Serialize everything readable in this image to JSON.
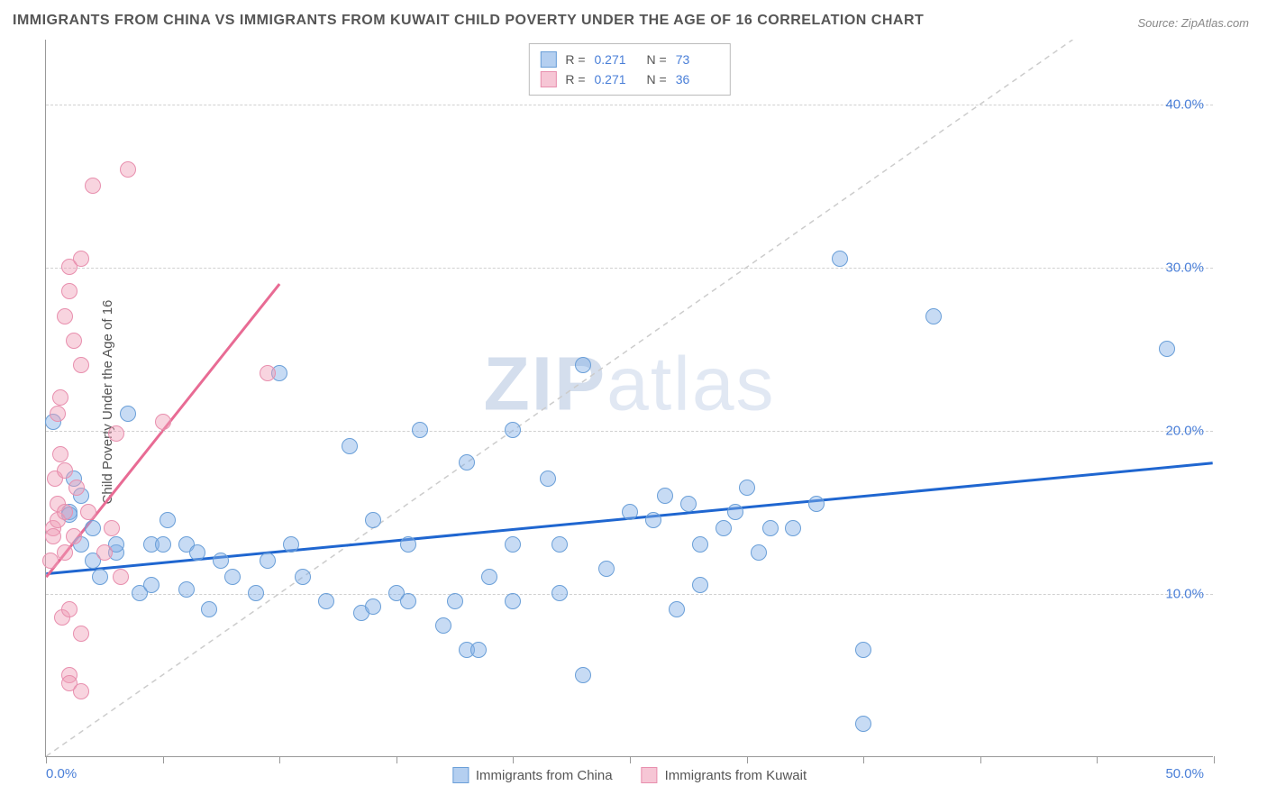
{
  "title": "IMMIGRANTS FROM CHINA VS IMMIGRANTS FROM KUWAIT CHILD POVERTY UNDER THE AGE OF 16 CORRELATION CHART",
  "source": "Source: ZipAtlas.com",
  "ylabel": "Child Poverty Under the Age of 16",
  "watermark_bold": "ZIP",
  "watermark_light": "atlas",
  "chart": {
    "type": "scatter",
    "background": "#ffffff",
    "grid_color": "#d0d0d0",
    "axis_color": "#999999",
    "blue_fill": "rgba(130,175,230,0.45)",
    "blue_stroke": "#6a9fd8",
    "pink_fill": "rgba(240,160,185,0.45)",
    "pink_stroke": "#e88fae",
    "trend_blue": "#1f66d0",
    "trend_pink": "#e86b94",
    "identity_line": "#cccccc",
    "marker_radius": 9,
    "trend_width": 3,
    "xlim": [
      0,
      50
    ],
    "ylim": [
      0,
      44
    ],
    "xticks": [
      0,
      5,
      10,
      15,
      20,
      25,
      30,
      35,
      40,
      45,
      50
    ],
    "yticks": [
      {
        "v": 10,
        "label": "10.0%"
      },
      {
        "v": 20,
        "label": "20.0%"
      },
      {
        "v": 30,
        "label": "30.0%"
      },
      {
        "v": 40,
        "label": "40.0%"
      }
    ],
    "xlabel_min": "0.0%",
    "xlabel_max": "50.0%",
    "series": [
      {
        "name": "Immigrants from China",
        "color": "blue",
        "R": "0.271",
        "N": "73",
        "trend": {
          "x1": 0,
          "y1": 11.2,
          "x2": 50,
          "y2": 18.0
        },
        "points": [
          [
            0.3,
            20.5
          ],
          [
            1.0,
            15.0
          ],
          [
            1.0,
            14.8
          ],
          [
            1.2,
            17.0
          ],
          [
            1.5,
            13.0
          ],
          [
            1.5,
            16.0
          ],
          [
            2.0,
            12.0
          ],
          [
            2.0,
            14.0
          ],
          [
            2.3,
            11.0
          ],
          [
            3.0,
            12.5
          ],
          [
            3.0,
            13.0
          ],
          [
            3.5,
            21.0
          ],
          [
            4.0,
            10.0
          ],
          [
            4.5,
            10.5
          ],
          [
            4.5,
            13.0
          ],
          [
            5.0,
            13.0
          ],
          [
            5.2,
            14.5
          ],
          [
            6.0,
            10.2
          ],
          [
            6.0,
            13.0
          ],
          [
            6.5,
            12.5
          ],
          [
            7.0,
            9.0
          ],
          [
            7.5,
            12.0
          ],
          [
            8.0,
            11.0
          ],
          [
            9.0,
            10.0
          ],
          [
            9.5,
            12.0
          ],
          [
            10.0,
            23.5
          ],
          [
            10.5,
            13.0
          ],
          [
            11.0,
            11.0
          ],
          [
            12.0,
            9.5
          ],
          [
            13.0,
            19.0
          ],
          [
            13.5,
            8.8
          ],
          [
            14.0,
            14.5
          ],
          [
            14.0,
            9.2
          ],
          [
            15.0,
            10.0
          ],
          [
            15.5,
            9.5
          ],
          [
            15.5,
            13.0
          ],
          [
            16.0,
            20.0
          ],
          [
            17.0,
            8.0
          ],
          [
            17.5,
            9.5
          ],
          [
            18.0,
            18.0
          ],
          [
            18.0,
            6.5
          ],
          [
            18.5,
            6.5
          ],
          [
            19.0,
            11.0
          ],
          [
            20.0,
            9.5
          ],
          [
            20.0,
            13.0
          ],
          [
            20.0,
            20.0
          ],
          [
            21.5,
            17.0
          ],
          [
            22.0,
            10.0
          ],
          [
            22.0,
            13.0
          ],
          [
            23.0,
            24.0
          ],
          [
            23.0,
            5.0
          ],
          [
            24.0,
            11.5
          ],
          [
            25.0,
            15.0
          ],
          [
            26.0,
            14.5
          ],
          [
            26.5,
            16.0
          ],
          [
            27.0,
            9.0
          ],
          [
            27.5,
            15.5
          ],
          [
            28.0,
            10.5
          ],
          [
            28.0,
            13.0
          ],
          [
            29.0,
            14.0
          ],
          [
            29.5,
            15.0
          ],
          [
            30.0,
            16.5
          ],
          [
            30.5,
            12.5
          ],
          [
            31.0,
            14.0
          ],
          [
            32.0,
            14.0
          ],
          [
            33.0,
            15.5
          ],
          [
            34.0,
            30.5
          ],
          [
            35.0,
            6.5
          ],
          [
            35.0,
            2.0
          ],
          [
            38.0,
            27.0
          ],
          [
            48.0,
            25.0
          ]
        ]
      },
      {
        "name": "Immigrants from Kuwait",
        "color": "pink",
        "R": "0.271",
        "N": "36",
        "trend": {
          "x1": 0,
          "y1": 11.0,
          "x2": 10,
          "y2": 29.0
        },
        "points": [
          [
            0.2,
            12.0
          ],
          [
            0.3,
            14.0
          ],
          [
            0.3,
            13.5
          ],
          [
            0.4,
            17.0
          ],
          [
            0.5,
            21.0
          ],
          [
            0.5,
            14.5
          ],
          [
            0.5,
            15.5
          ],
          [
            0.6,
            18.5
          ],
          [
            0.6,
            22.0
          ],
          [
            0.7,
            8.5
          ],
          [
            0.8,
            27.0
          ],
          [
            0.8,
            12.5
          ],
          [
            0.8,
            15.0
          ],
          [
            0.8,
            17.5
          ],
          [
            1.0,
            28.5
          ],
          [
            1.0,
            30.0
          ],
          [
            1.0,
            5.0
          ],
          [
            1.0,
            4.5
          ],
          [
            1.0,
            9.0
          ],
          [
            1.2,
            25.5
          ],
          [
            1.2,
            13.5
          ],
          [
            1.3,
            16.5
          ],
          [
            1.5,
            24.0
          ],
          [
            1.5,
            30.5
          ],
          [
            1.5,
            7.5
          ],
          [
            1.5,
            4.0
          ],
          [
            1.8,
            15.0
          ],
          [
            2.0,
            35.0
          ],
          [
            2.5,
            12.5
          ],
          [
            2.8,
            14.0
          ],
          [
            3.0,
            19.8
          ],
          [
            3.2,
            11.0
          ],
          [
            3.5,
            36.0
          ],
          [
            5.0,
            20.5
          ],
          [
            9.5,
            23.5
          ]
        ]
      }
    ]
  }
}
